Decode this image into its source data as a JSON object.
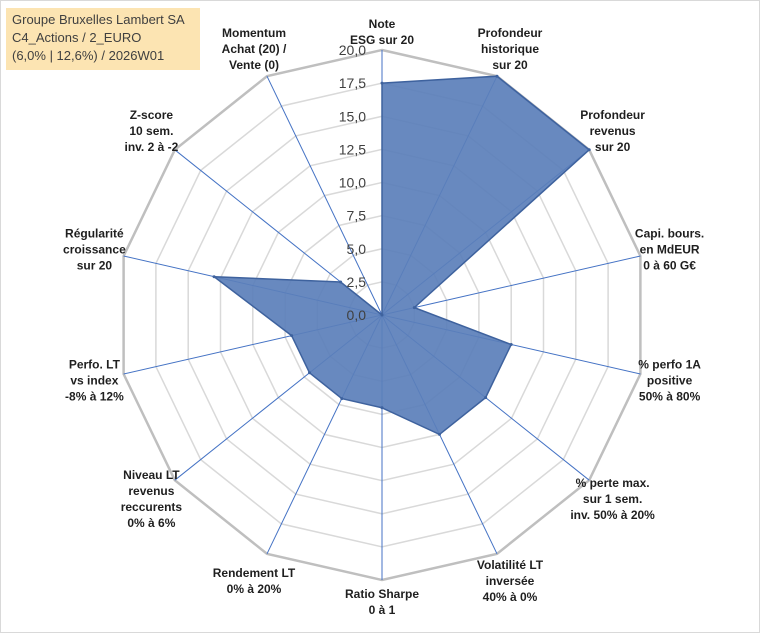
{
  "title": {
    "line1": "Groupe Bruxelles Lambert SA",
    "line2": "C4_Actions / 2_EURO",
    "line3": "(6,0% | 12,6%) / 2026W01"
  },
  "colors": {
    "fill": "#5b7fba",
    "stroke": "#3e629e",
    "grid": "#d9d9d9",
    "outer_grid": "#bfbfbf",
    "spoke": "#4472c4",
    "title_bg": "#fce4b2"
  },
  "chart_data": {
    "type": "radar",
    "title": "",
    "rmin": 0,
    "rmax": 20,
    "tick_step": 2.5,
    "tick_labels": [
      "0,0",
      "2,5",
      "5,0",
      "7,5",
      "10,0",
      "12,5",
      "15,0",
      "17,5",
      "20,0"
    ],
    "axes": [
      [
        "Note",
        "ESG sur 20"
      ],
      [
        "Profondeur",
        "historique",
        "sur 20"
      ],
      [
        "Profondeur",
        "revenus",
        "sur 20"
      ],
      [
        "Capi. bours.",
        "en MdEUR",
        "0 à 60 G€"
      ],
      [
        "% perfo 1A",
        "positive",
        "50% à 80%"
      ],
      [
        "% perte max.",
        "sur 1 sem.",
        "inv. 50% à 20%"
      ],
      [
        "Volatilité LT",
        "inversée",
        "40% à 0%"
      ],
      [
        "Ratio Sharpe",
        "0 à 1"
      ],
      [
        "Rendement LT",
        "0% à 20%"
      ],
      [
        "Niveau LT",
        "revenus",
        "reccurents",
        "0% à 6%"
      ],
      [
        "Perfo. LT",
        "vs index",
        "-8% à 12%"
      ],
      [
        "Régularité",
        "croissance",
        "sur 20"
      ],
      [
        "Z-score",
        "10 sem.",
        "inv. 2 à -2"
      ],
      [
        "Momentum",
        "Achat (20) /",
        "Vente (0)"
      ]
    ],
    "series": [
      {
        "name": "Groupe Bruxelles Lambert SA",
        "values": [
          17.5,
          20,
          20,
          2.5,
          10,
          10,
          10,
          7,
          7,
          7,
          7,
          13,
          4,
          0
        ]
      }
    ]
  }
}
